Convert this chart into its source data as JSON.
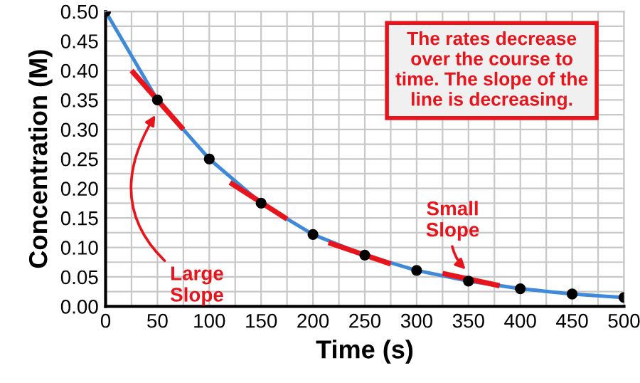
{
  "chart_data": {
    "type": "line",
    "xlabel": "Time (s)",
    "ylabel": "Concentration (M)",
    "x": [
      0,
      50,
      100,
      150,
      200,
      250,
      300,
      350,
      400,
      450,
      500
    ],
    "series": [
      {
        "color": "#3f8ad8",
        "values": [
          0.5,
          0.35,
          0.25,
          0.175,
          0.122,
          0.087,
          0.061,
          0.043,
          0.03,
          0.021,
          0.015
        ],
        "marker": "circle"
      },
      {
        "type": "line",
        "color": "#e8141b",
        "x": [
          25,
          75
        ],
        "values": [
          0.4,
          0.3
        ]
      },
      {
        "type": "line",
        "color": "#e8141b",
        "x": [
          120,
          175
        ],
        "values": [
          0.21,
          0.148
        ]
      },
      {
        "type": "line",
        "color": "#e8141b",
        "x": [
          215,
          275
        ],
        "values": [
          0.108,
          0.072
        ]
      },
      {
        "type": "line",
        "color": "#e8141b",
        "x": [
          325,
          380
        ],
        "values": [
          0.056,
          0.035
        ]
      }
    ],
    "xlim": [
      0,
      500
    ],
    "ylim": [
      0,
      0.5
    ],
    "xticks": [
      0,
      {
        "value": 25,
        "label": null
      },
      50,
      {
        "value": 75,
        "label": null
      },
      100,
      {
        "value": 125,
        "label": null
      },
      150,
      {
        "value": 175,
        "label": null
      },
      200,
      {
        "value": 225,
        "label": null
      },
      250,
      {
        "value": 275,
        "label": null
      },
      300,
      {
        "value": 325,
        "label": null
      },
      350,
      {
        "value": 375,
        "label": null
      },
      400,
      {
        "value": 425,
        "label": null
      },
      450,
      {
        "value": 475,
        "label": null
      },
      500
    ],
    "yticks": [
      {
        "value": 0,
        "label": "0.00"
      },
      {
        "value": 0.025,
        "label": null
      },
      {
        "value": 0.05,
        "label": "0.05"
      },
      {
        "value": 0.075,
        "label": null
      },
      {
        "value": 0.1,
        "label": "0.10"
      },
      {
        "value": 0.125,
        "label": null
      },
      {
        "value": 0.15,
        "label": "0.15"
      },
      {
        "value": 0.175,
        "label": null
      },
      {
        "value": 0.2,
        "label": "0.20"
      },
      {
        "value": 0.225,
        "label": null
      },
      {
        "value": 0.25,
        "label": "0.25"
      },
      {
        "value": 0.275,
        "label": null
      },
      {
        "value": 0.3,
        "label": "0.30"
      },
      {
        "value": 0.325,
        "label": null
      },
      {
        "value": 0.35,
        "label": "0.35"
      },
      {
        "value": 0.375,
        "label": null
      },
      {
        "value": 0.4,
        "label": "0.40"
      },
      {
        "value": 0.425,
        "label": null
      },
      {
        "value": 0.45,
        "label": "0.45"
      },
      {
        "value": 0.475,
        "label": null
      },
      {
        "value": 0.5,
        "label": "0.50"
      }
    ],
    "grid": true,
    "annotations": [
      "The rates decrease over the course to time. The slope of the line is decreasing.",
      {
        "text": "Large\nSlope",
        "x": 50,
        "y": 0.33
      },
      {
        "text": "Small\nSlope",
        "x": 350,
        "y": 0.058
      }
    ]
  }
}
